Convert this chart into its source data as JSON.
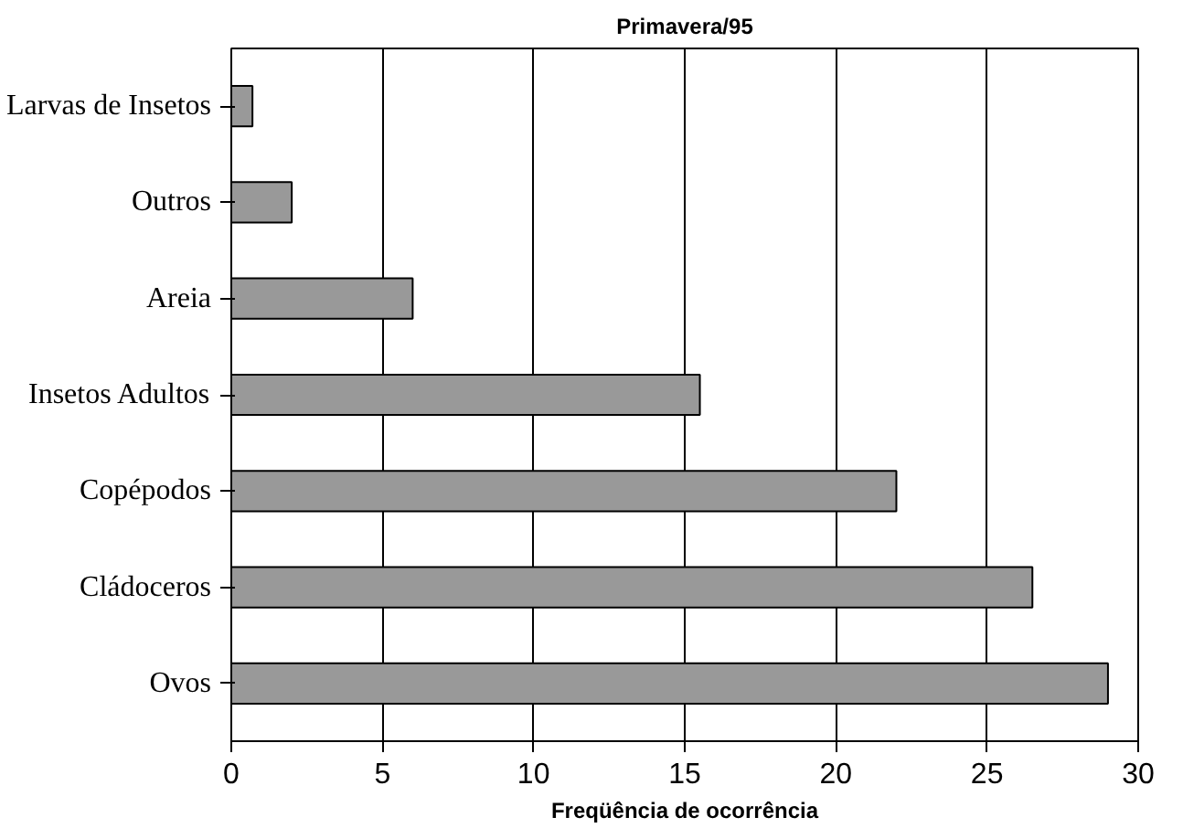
{
  "chart_data": {
    "type": "bar",
    "orientation": "horizontal",
    "title": "Primavera/95",
    "xlabel": "Freqüência de ocorrência",
    "categories": [
      "Larvas de Insetos",
      "Outros",
      "Areia",
      "Insetos Adultos",
      "Copépodos",
      "Cládoceros",
      "Ovos"
    ],
    "values": [
      0.7,
      2,
      6,
      15.5,
      22,
      26.5,
      29
    ],
    "color": "#999999",
    "xlim": [
      0,
      30
    ],
    "xticks": [
      0,
      5,
      10,
      15,
      20,
      25,
      30
    ],
    "grid": "x"
  }
}
